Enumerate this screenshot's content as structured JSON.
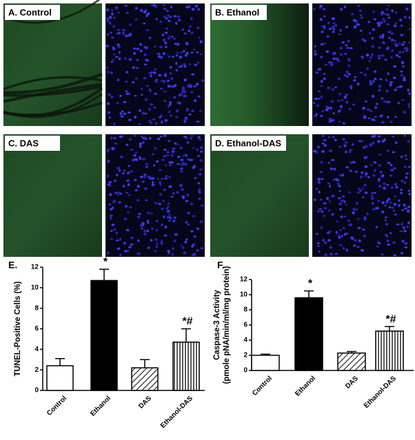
{
  "panels": [
    {
      "label": "A. Control"
    },
    {
      "label": "B. Ethanol"
    },
    {
      "label": "C. DAS"
    },
    {
      "label": "D. Ethanol-DAS"
    }
  ],
  "chart_data": [
    {
      "type": "bar",
      "title": "E.",
      "y_label": [
        "TUNEL-Positive Cells (%)"
      ],
      "categories": [
        "Control",
        "Ethanol",
        "DAS",
        "Ethanol-DAS"
      ],
      "values": [
        2.4,
        10.7,
        2.2,
        4.7
      ],
      "errors": [
        0.7,
        1.1,
        0.8,
        1.3
      ],
      "fills": [
        "white",
        "black",
        "diagonal",
        "vertical"
      ],
      "annotations": [
        null,
        "*",
        null,
        "*#"
      ],
      "ylim": [
        0,
        12
      ],
      "yticks": [
        0,
        2,
        4,
        6,
        8,
        10,
        12
      ]
    },
    {
      "type": "bar",
      "title": "F.",
      "y_label": [
        "Caspase-3 Activity",
        "(pmole pNA/min/ml/mg protein)"
      ],
      "categories": [
        "Control",
        "Ethanol",
        "DAS",
        "Ethanol-DAS"
      ],
      "values": [
        2.0,
        9.6,
        2.3,
        5.2
      ],
      "errors": [
        0.15,
        0.9,
        0.2,
        0.6
      ],
      "fills": [
        "white",
        "black",
        "diagonal",
        "vertical"
      ],
      "annotations": [
        null,
        "*",
        null,
        "*#"
      ],
      "ylim": [
        0,
        12
      ],
      "yticks": [
        0,
        2,
        4,
        6,
        8,
        10,
        12
      ]
    }
  ]
}
